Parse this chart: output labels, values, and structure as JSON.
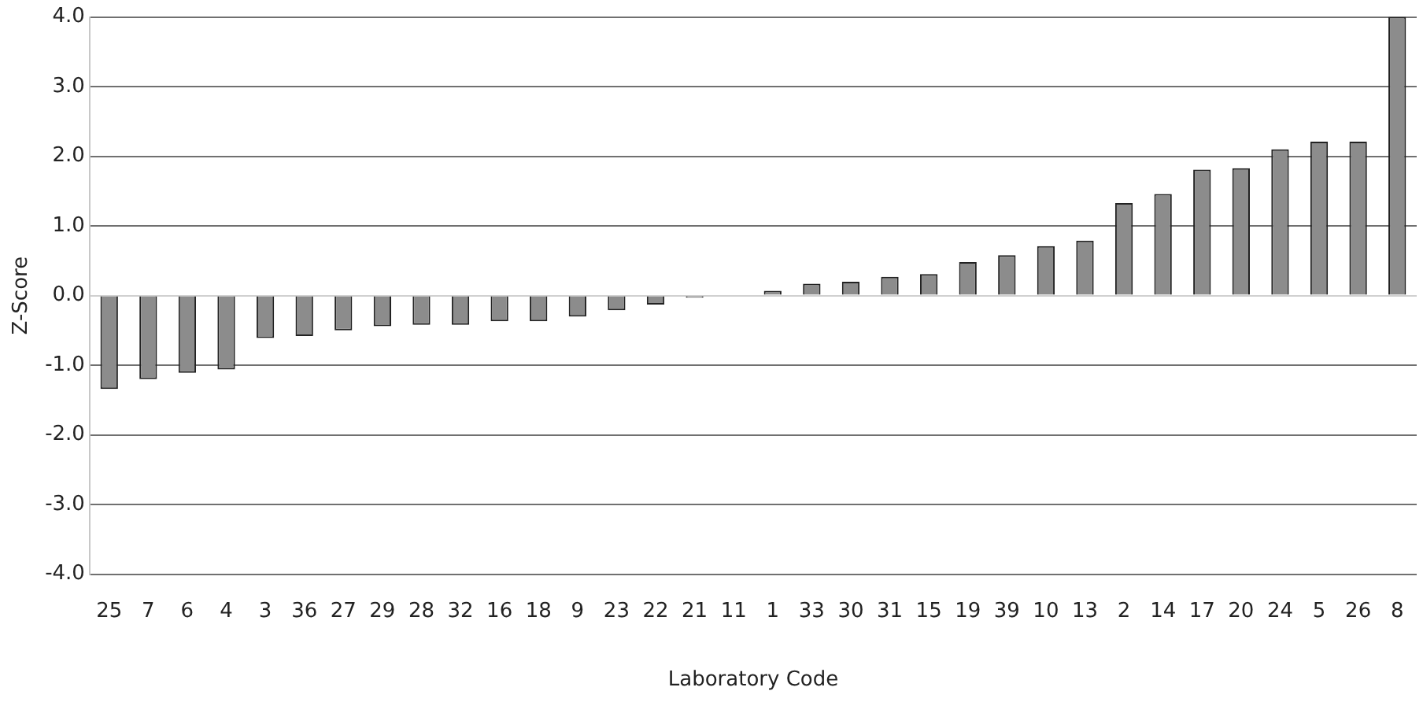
{
  "chart_data": {
    "type": "bar",
    "xlabel": "Laboratory Code",
    "ylabel": "Z-Score",
    "categories": [
      "25",
      "7",
      "6",
      "4",
      "3",
      "36",
      "27",
      "29",
      "28",
      "32",
      "16",
      "18",
      "9",
      "23",
      "22",
      "21",
      "11",
      "1",
      "33",
      "30",
      "31",
      "15",
      "19",
      "39",
      "10",
      "13",
      "2",
      "14",
      "17",
      "20",
      "24",
      "5",
      "26",
      "8"
    ],
    "values": [
      -1.34,
      -1.2,
      -1.11,
      -1.06,
      -0.61,
      -0.58,
      -0.5,
      -0.44,
      -0.42,
      -0.42,
      -0.37,
      -0.37,
      -0.3,
      -0.21,
      -0.13,
      -0.03,
      0,
      0.07,
      0.17,
      0.2,
      0.27,
      0.31,
      0.48,
      0.58,
      0.71,
      0.79,
      1.33,
      1.46,
      1.81,
      1.83,
      2.1,
      2.21,
      2.21,
      4.0
    ],
    "color": "#8c8c8c",
    "ylim": [
      -4,
      4
    ],
    "yticks": [
      {
        "value": -4,
        "label": "-4.0"
      },
      {
        "value": -3,
        "label": "-3.0"
      },
      {
        "value": -2,
        "label": "-2.0"
      },
      {
        "value": -1,
        "label": "-1.0"
      },
      {
        "value": 0,
        "label": "0.0"
      },
      {
        "value": 1,
        "label": "1.0"
      },
      {
        "value": 2,
        "label": "2.0"
      },
      {
        "value": 3,
        "label": "3.0"
      },
      {
        "value": 4,
        "label": "4.0"
      }
    ],
    "grid": "y"
  }
}
